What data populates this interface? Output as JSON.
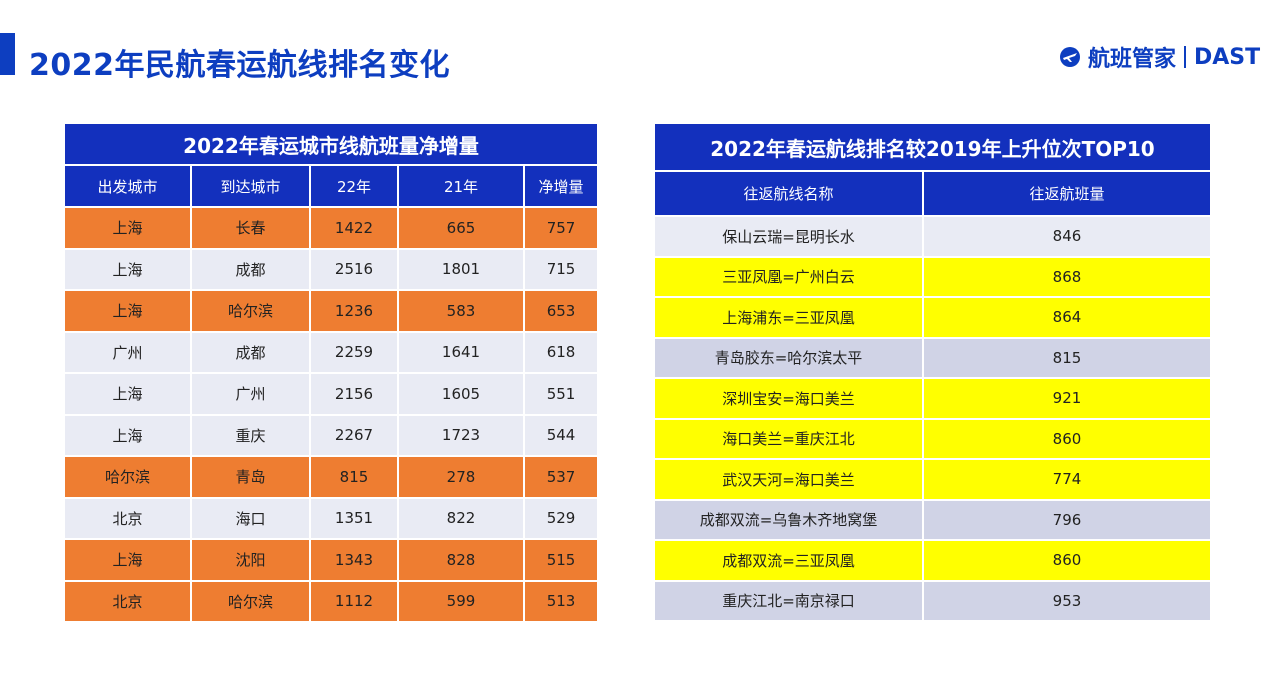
{
  "page_title": "2022年民航春运航线排名变化",
  "logo": {
    "cn_name": "航班管家",
    "brand": "DAST"
  },
  "colors": {
    "primary_blue": "#1330bd",
    "title_blue": "#0d3ec0",
    "orange_highlight": "#ee7d31",
    "light_row": "#e9ebf4",
    "yellow_highlight": "#ffff00",
    "gray_row": "#d0d3e6"
  },
  "left_table": {
    "title": "2022年春运城市线航班量净增量",
    "headers": [
      "出发城市",
      "到达城市",
      "22年",
      "21年",
      "净增量"
    ],
    "rows": [
      {
        "cells": [
          "上海",
          "长春",
          "1422",
          "665",
          "757"
        ],
        "highlight": "orange"
      },
      {
        "cells": [
          "上海",
          "成都",
          "2516",
          "1801",
          "715"
        ],
        "highlight": "light"
      },
      {
        "cells": [
          "上海",
          "哈尔滨",
          "1236",
          "583",
          "653"
        ],
        "highlight": "orange"
      },
      {
        "cells": [
          "广州",
          "成都",
          "2259",
          "1641",
          "618"
        ],
        "highlight": "light"
      },
      {
        "cells": [
          "上海",
          "广州",
          "2156",
          "1605",
          "551"
        ],
        "highlight": "light"
      },
      {
        "cells": [
          "上海",
          "重庆",
          "2267",
          "1723",
          "544"
        ],
        "highlight": "light"
      },
      {
        "cells": [
          "哈尔滨",
          "青岛",
          "815",
          "278",
          "537"
        ],
        "highlight": "orange"
      },
      {
        "cells": [
          "北京",
          "海口",
          "1351",
          "822",
          "529"
        ],
        "highlight": "light"
      },
      {
        "cells": [
          "上海",
          "沈阳",
          "1343",
          "828",
          "515"
        ],
        "highlight": "orange"
      },
      {
        "cells": [
          "北京",
          "哈尔滨",
          "1112",
          "599",
          "513"
        ],
        "highlight": "orange"
      }
    ]
  },
  "right_table": {
    "title": "2022年春运航线排名较2019年上升位次TOP10",
    "headers": [
      "往返航线名称",
      "往返航班量"
    ],
    "rows": [
      {
        "cells": [
          "保山云瑞=昆明长水",
          "846"
        ],
        "highlight": "light"
      },
      {
        "cells": [
          "三亚凤凰=广州白云",
          "868"
        ],
        "highlight": "yellow"
      },
      {
        "cells": [
          "上海浦东=三亚凤凰",
          "864"
        ],
        "highlight": "yellow"
      },
      {
        "cells": [
          "青岛胶东=哈尔滨太平",
          "815"
        ],
        "highlight": "gray"
      },
      {
        "cells": [
          "深圳宝安=海口美兰",
          "921"
        ],
        "highlight": "yellow"
      },
      {
        "cells": [
          "海口美兰=重庆江北",
          "860"
        ],
        "highlight": "yellow"
      },
      {
        "cells": [
          "武汉天河=海口美兰",
          "774"
        ],
        "highlight": "yellow"
      },
      {
        "cells": [
          "成都双流=乌鲁木齐地窝堡",
          "796"
        ],
        "highlight": "gray"
      },
      {
        "cells": [
          "成都双流=三亚凤凰",
          "860"
        ],
        "highlight": "yellow"
      },
      {
        "cells": [
          "重庆江北=南京禄口",
          "953"
        ],
        "highlight": "gray"
      }
    ]
  }
}
